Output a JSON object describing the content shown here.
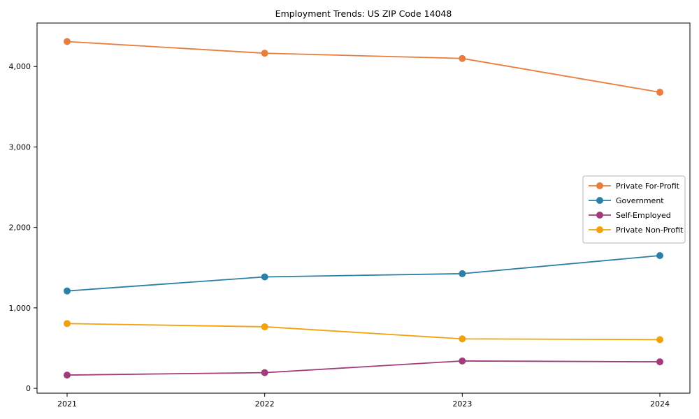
{
  "chart_data": {
    "type": "line",
    "title": "Employment Trends: US ZIP Code 14048",
    "x_categories": [
      "2021",
      "2022",
      "2023",
      "2024"
    ],
    "series": [
      {
        "name": "Private For-Profit",
        "color": "#e87d3e",
        "values": [
          4310,
          4165,
          4100,
          3680
        ]
      },
      {
        "name": "Government",
        "color": "#2c7fa6",
        "values": [
          1210,
          1385,
          1425,
          1650
        ]
      },
      {
        "name": "Self-Employed",
        "color": "#a23b7b",
        "values": [
          165,
          195,
          340,
          330
        ]
      },
      {
        "name": "Private Non-Profit",
        "color": "#f2a20c",
        "values": [
          805,
          765,
          615,
          605
        ]
      }
    ],
    "xlabel": "",
    "ylabel": "",
    "ylim": [
      -60,
      4540
    ],
    "yticks": [
      0,
      1000,
      2000,
      3000,
      4000
    ],
    "ytick_labels": [
      "0",
      "1,000",
      "2,000",
      "3,000",
      "4,000"
    ],
    "grid": false,
    "marker": "circle",
    "line_width": 1.8,
    "marker_radius": 5,
    "axis_color": "#000000",
    "legend": {
      "position": "center right",
      "border_color": "#b5b5b5",
      "entries": [
        "Private For-Profit",
        "Government",
        "Self-Employed",
        "Private Non-Profit"
      ]
    }
  }
}
